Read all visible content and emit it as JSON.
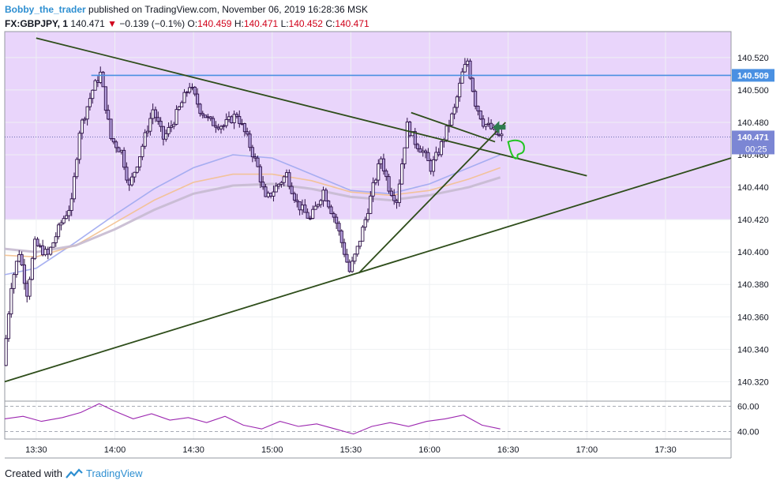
{
  "header": {
    "author": "Bobby_the_trader",
    "published_text": "published on TradingView.com, November 06, 2019 16:28:36 MSK",
    "symbol": "FX:GBPJPY, 1",
    "last": "140.471",
    "change": "−0.139 (−0.1%)",
    "o_label": "O:",
    "o_value": "140.459",
    "h_label": "H:",
    "h_value": "140.471",
    "l_label": "L:",
    "l_value": "140.452",
    "c_label": "C:",
    "c_value": "140.471"
  },
  "footer": {
    "created_with": "Created with",
    "brand": "TradingView"
  },
  "colors": {
    "candle_body": "#b39ddb",
    "candle_border": "#2a0d45",
    "zone": "#e9d5fb",
    "trend": "#2e4d1a",
    "level": "#4a90e2",
    "rsi": "#9c27b0",
    "ma_blue": "#9fa8ef",
    "ma_orange": "#f3c08f",
    "ma_gray": "#c7bad0",
    "marker": "#2e7d4f",
    "drawing": "#22c522"
  },
  "chart_data": [
    {
      "type": "candlestick",
      "title": "",
      "x_ticks": [
        "13:30",
        "14:00",
        "14:30",
        "15:00",
        "15:30",
        "16:00",
        "16:30",
        "17:00",
        "17:30"
      ],
      "x_range": [
        "13:18",
        "17:55"
      ],
      "y_ticks": [
        "140.520",
        "140.500",
        "140.480",
        "140.460",
        "140.440",
        "140.420",
        "140.400",
        "140.380",
        "140.360",
        "140.340",
        "140.320"
      ],
      "ylim": [
        140.308,
        140.536
      ],
      "price_labels": {
        "horizontal_level": "140.509",
        "last_price": "140.471",
        "countdown": "00:25"
      },
      "horizontal_level": 140.509,
      "last_price": 140.471,
      "zone": {
        "from": 140.42,
        "to": 140.536
      },
      "price_path": [
        [
          "13:18",
          140.33
        ],
        [
          "13:21",
          140.38
        ],
        [
          "13:24",
          140.4
        ],
        [
          "13:27",
          140.375
        ],
        [
          "13:30",
          140.405
        ],
        [
          "13:35",
          140.398
        ],
        [
          "13:40",
          140.418
        ],
        [
          "13:44",
          140.43
        ],
        [
          "13:47",
          140.475
        ],
        [
          "13:52",
          140.5
        ],
        [
          "13:55",
          140.51
        ],
        [
          "13:59",
          140.47
        ],
        [
          "14:03",
          140.462
        ],
        [
          "14:06",
          140.44
        ],
        [
          "14:10",
          140.46
        ],
        [
          "14:15",
          140.488
        ],
        [
          "14:19",
          140.47
        ],
        [
          "14:22",
          140.478
        ],
        [
          "14:26",
          140.492
        ],
        [
          "14:29",
          140.503
        ],
        [
          "14:33",
          140.488
        ],
        [
          "14:37",
          140.48
        ],
        [
          "14:42",
          140.478
        ],
        [
          "14:47",
          140.485
        ],
        [
          "14:51",
          140.47
        ],
        [
          "14:55",
          140.452
        ],
        [
          "14:58",
          140.432
        ],
        [
          "15:02",
          140.44
        ],
        [
          "15:06",
          140.448
        ],
        [
          "15:10",
          140.43
        ],
        [
          "15:15",
          140.42
        ],
        [
          "15:20",
          140.438
        ],
        [
          "15:25",
          140.418
        ],
        [
          "15:28",
          140.4
        ],
        [
          "15:30",
          140.388
        ],
        [
          "15:33",
          140.402
        ],
        [
          "15:36",
          140.42
        ],
        [
          "15:39",
          140.44
        ],
        [
          "15:42",
          140.458
        ],
        [
          "15:45",
          140.44
        ],
        [
          "15:48",
          140.432
        ],
        [
          "15:52",
          140.478
        ],
        [
          "15:55",
          140.468
        ],
        [
          "15:58",
          140.462
        ],
        [
          "16:01",
          140.452
        ],
        [
          "16:04",
          140.462
        ],
        [
          "16:07",
          140.475
        ],
        [
          "16:10",
          140.488
        ],
        [
          "16:13",
          140.51
        ],
        [
          "16:15",
          140.518
        ],
        [
          "16:18",
          140.492
        ],
        [
          "16:21",
          140.48
        ],
        [
          "16:24",
          140.476
        ],
        [
          "16:27",
          140.471
        ]
      ],
      "trendlines": [
        {
          "name": "falling-resistance",
          "from": [
            "13:30",
            140.532
          ],
          "to": [
            "17:00",
            140.447
          ]
        },
        {
          "name": "rising-support",
          "from": [
            "13:18",
            140.32
          ],
          "to": [
            "17:55",
            140.458
          ]
        },
        {
          "name": "short-rising",
          "from": [
            "15:33",
            140.387
          ],
          "to": [
            "16:29",
            140.48
          ]
        },
        {
          "name": "short-falling",
          "from": [
            "15:53",
            140.486
          ],
          "to": [
            "16:25",
            140.468
          ]
        }
      ],
      "moving_averages": [
        {
          "name": "blue",
          "points": [
            [
              "13:18",
              140.386
            ],
            [
              "13:30",
              140.39
            ],
            [
              "13:45",
              140.406
            ],
            [
              "14:00",
              140.423
            ],
            [
              "14:15",
              140.439
            ],
            [
              "14:30",
              140.452
            ],
            [
              "14:45",
              140.46
            ],
            [
              "15:00",
              140.458
            ],
            [
              "15:15",
              140.448
            ],
            [
              "15:30",
              140.438
            ],
            [
              "15:45",
              140.436
            ],
            [
              "16:00",
              140.442
            ],
            [
              "16:15",
              140.452
            ],
            [
              "16:27",
              140.46
            ]
          ]
        },
        {
          "name": "orange",
          "points": [
            [
              "13:18",
              140.398
            ],
            [
              "13:30",
              140.397
            ],
            [
              "13:45",
              140.404
            ],
            [
              "14:00",
              140.418
            ],
            [
              "14:15",
              140.432
            ],
            [
              "14:30",
              140.443
            ],
            [
              "14:45",
              140.448
            ],
            [
              "15:00",
              140.448
            ],
            [
              "15:15",
              140.444
            ],
            [
              "15:30",
              140.437
            ],
            [
              "15:45",
              140.435
            ],
            [
              "16:00",
              140.438
            ],
            [
              "16:15",
              140.445
            ],
            [
              "16:27",
              140.452
            ]
          ]
        },
        {
          "name": "gray",
          "points": [
            [
              "13:18",
              140.402
            ],
            [
              "13:30",
              140.4
            ],
            [
              "13:45",
              140.404
            ],
            [
              "14:00",
              140.414
            ],
            [
              "14:15",
              140.426
            ],
            [
              "14:30",
              140.436
            ],
            [
              "14:45",
              140.441
            ],
            [
              "15:00",
              140.442
            ],
            [
              "15:15",
              140.439
            ],
            [
              "15:30",
              140.434
            ],
            [
              "15:45",
              140.432
            ],
            [
              "16:00",
              140.435
            ],
            [
              "16:15",
              140.44
            ],
            [
              "16:27",
              140.446
            ]
          ]
        }
      ]
    },
    {
      "type": "line",
      "title": "",
      "y_ticks": [
        "60.00",
        "40.00"
      ],
      "ylim": [
        34,
        64
      ],
      "reference_lines": [
        60,
        40
      ],
      "series": [
        {
          "values": [
            [
              "13:18",
              50
            ],
            [
              "13:25",
              52
            ],
            [
              "13:32",
              48
            ],
            [
              "13:40",
              51
            ],
            [
              "13:47",
              55
            ],
            [
              "13:54",
              62
            ],
            [
              "14:00",
              56
            ],
            [
              "14:07",
              50
            ],
            [
              "14:14",
              54
            ],
            [
              "14:21",
              49
            ],
            [
              "14:28",
              51
            ],
            [
              "14:35",
              47
            ],
            [
              "14:42",
              52
            ],
            [
              "14:49",
              45
            ],
            [
              "14:56",
              42
            ],
            [
              "15:03",
              48
            ],
            [
              "15:10",
              44
            ],
            [
              "15:17",
              46
            ],
            [
              "15:24",
              42
            ],
            [
              "15:31",
              38
            ],
            [
              "15:38",
              44
            ],
            [
              "15:45",
              47
            ],
            [
              "15:52",
              44
            ],
            [
              "15:59",
              48
            ],
            [
              "16:06",
              50
            ],
            [
              "16:13",
              53
            ],
            [
              "16:20",
              45
            ],
            [
              "16:27",
              42
            ]
          ]
        }
      ]
    }
  ]
}
